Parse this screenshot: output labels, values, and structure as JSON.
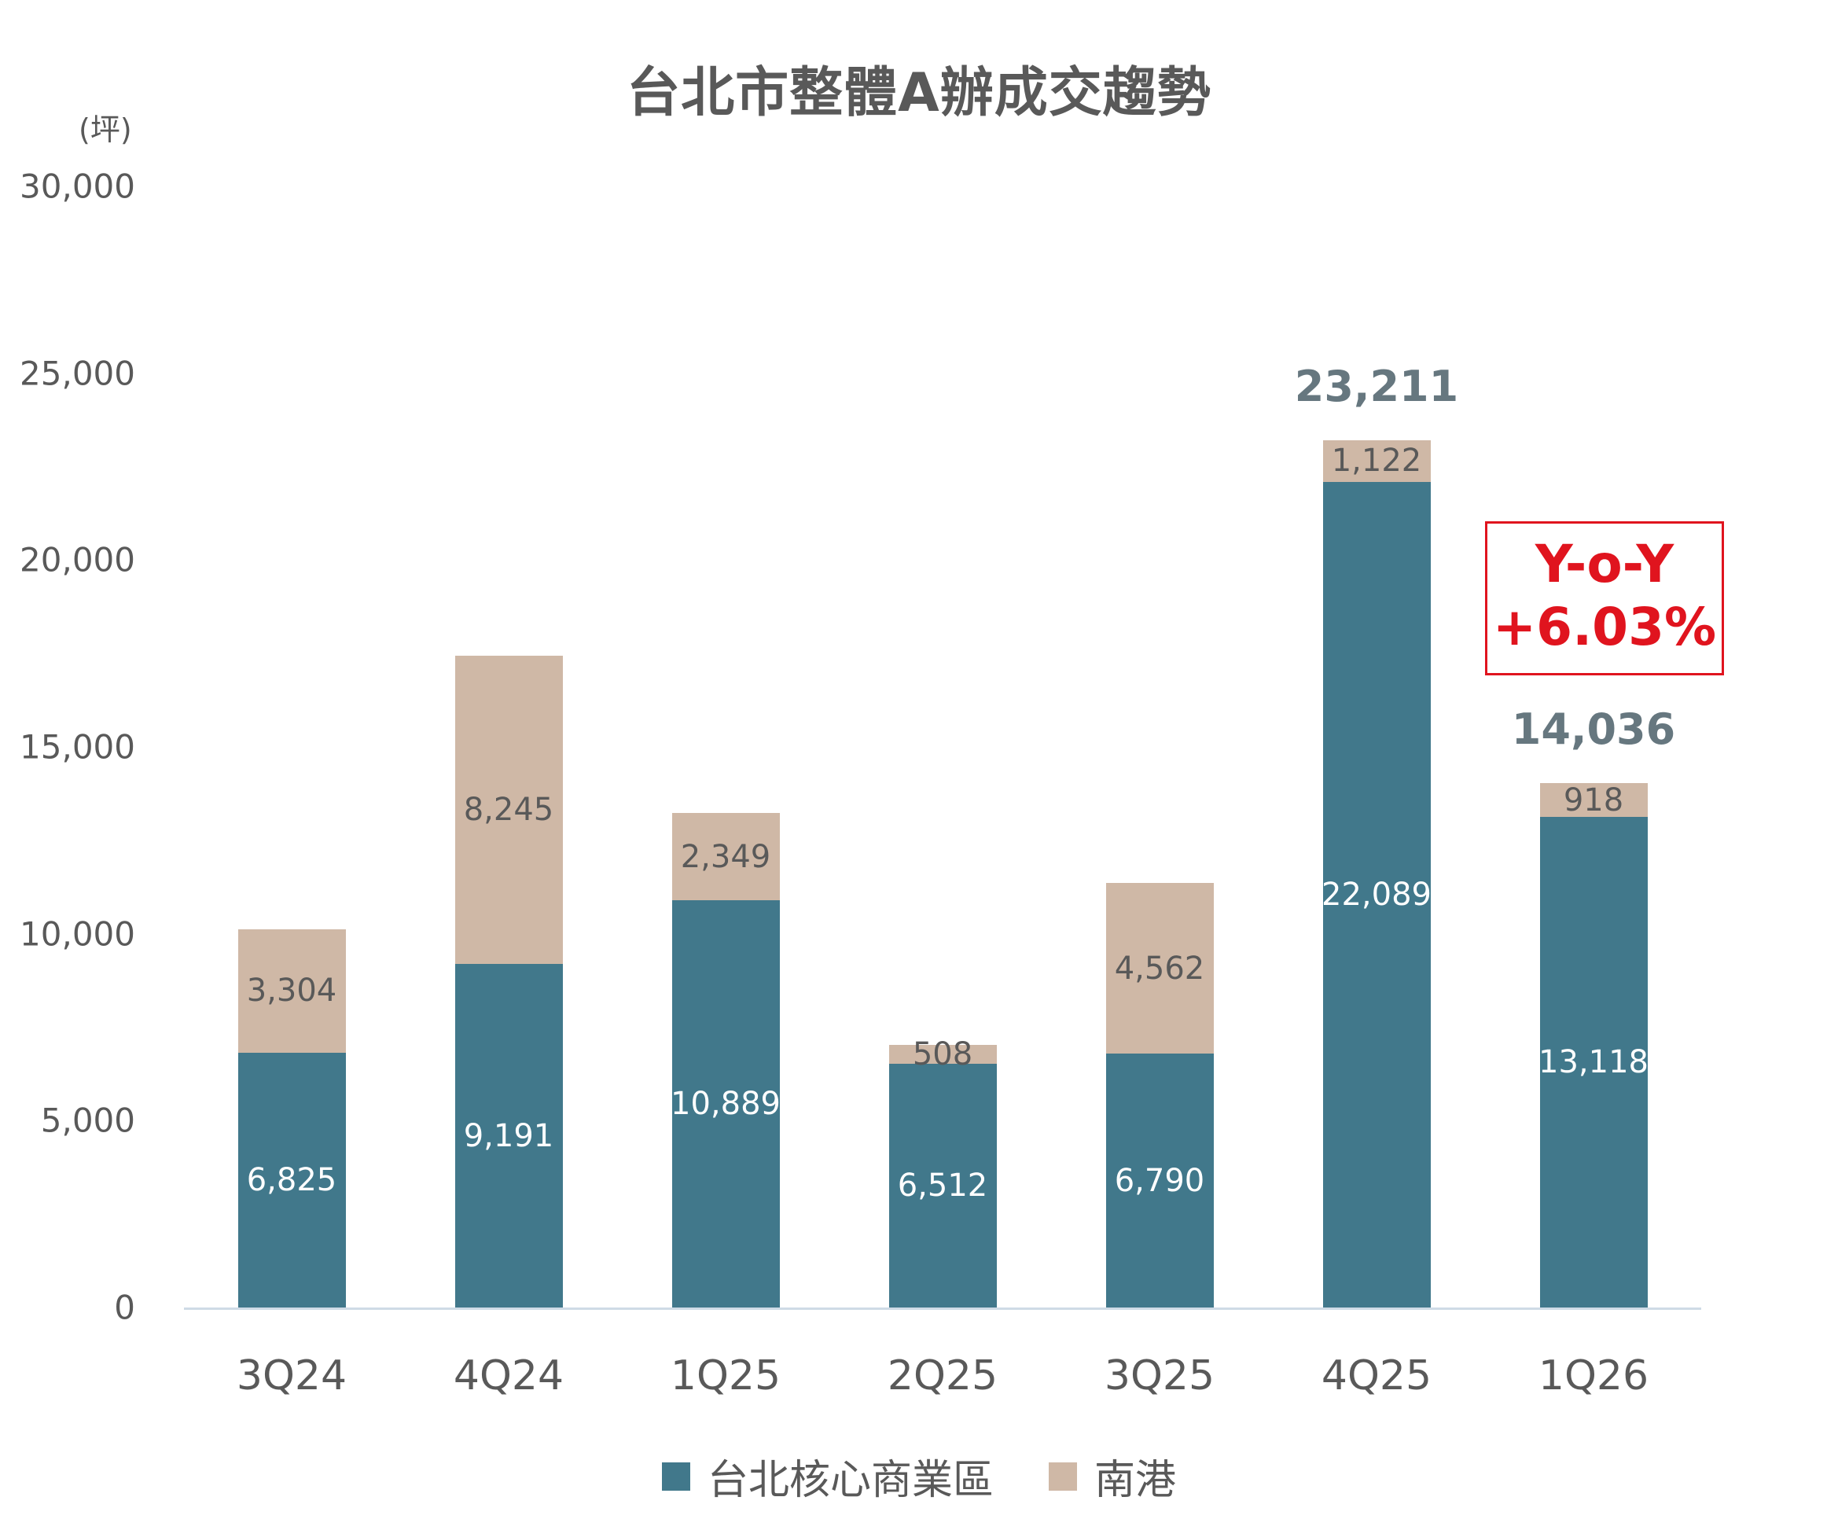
{
  "title": "台北市整體A辦成交趨勢",
  "unit_label": "(坪)",
  "yoy_box": {
    "line1": "Y-o-Y",
    "line2": "+6.03%",
    "color": "#e0141e"
  },
  "colors": {
    "core": "#41788b",
    "nangang": "#cfb8a6",
    "axis": "#cfdbe6",
    "total_label": "#66777f"
  },
  "legend": [
    {
      "label": "台北核心商業區",
      "color": "#41788b"
    },
    {
      "label": "南港",
      "color": "#cfb8a6"
    }
  ],
  "y_ticks": [
    "0",
    "5,000",
    "10,000",
    "15,000",
    "20,000",
    "25,000",
    "30,000"
  ],
  "bars": [
    {
      "category": "3Q24",
      "core": "6,825",
      "nangang": "3,304",
      "total": ""
    },
    {
      "category": "4Q24",
      "core": "9,191",
      "nangang": "8,245",
      "total": ""
    },
    {
      "category": "1Q25",
      "core": "10,889",
      "nangang": "2,349",
      "total": ""
    },
    {
      "category": "2Q25",
      "core": "6,512",
      "nangang": "508",
      "total": ""
    },
    {
      "category": "3Q25",
      "core": "6,790",
      "nangang": "4,562",
      "total": ""
    },
    {
      "category": "4Q25",
      "core": "22,089",
      "nangang": "1,122",
      "total": "23,211"
    },
    {
      "category": "1Q26",
      "core": "13,118",
      "nangang": "918",
      "total": "14,036"
    }
  ],
  "chart_data": {
    "type": "bar",
    "stacked": true,
    "title": "台北市整體A辦成交趨勢",
    "xlabel": "",
    "ylabel": "(坪)",
    "ylim": [
      0,
      30000
    ],
    "y_ticks": [
      0,
      5000,
      10000,
      15000,
      20000,
      25000,
      30000
    ],
    "grid": false,
    "legend_position": "bottom",
    "categories": [
      "3Q24",
      "4Q24",
      "1Q25",
      "2Q25",
      "3Q25",
      "4Q25",
      "1Q26"
    ],
    "series": [
      {
        "name": "台北核心商業區",
        "color": "#41788b",
        "values": [
          6825,
          9191,
          10889,
          6512,
          6790,
          22089,
          13118
        ]
      },
      {
        "name": "南港",
        "color": "#cfb8a6",
        "values": [
          3304,
          8245,
          2349,
          508,
          4562,
          1122,
          918
        ]
      }
    ],
    "totals_labeled": {
      "4Q25": 23211,
      "1Q26": 14036
    },
    "annotations": [
      {
        "text": "Y-o-Y +6.03%",
        "color": "#e0141e",
        "boxed": true,
        "near": "1Q26"
      }
    ]
  }
}
